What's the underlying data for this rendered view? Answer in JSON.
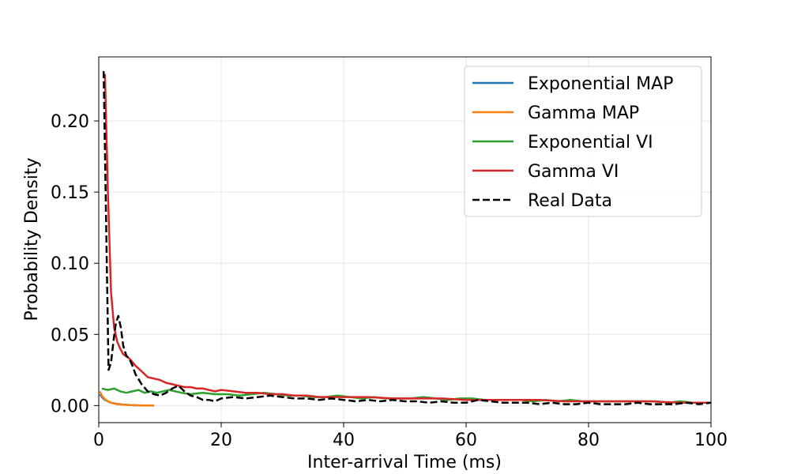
{
  "chart_data": {
    "type": "line",
    "title": "",
    "xlabel": "Inter-arrival Time (ms)",
    "ylabel": "Probability Density",
    "xlim": [
      0,
      100
    ],
    "ylim": [
      -0.012,
      0.245
    ],
    "xticks": [
      0,
      20,
      40,
      60,
      80,
      100
    ],
    "xtick_labels": [
      "0",
      "20",
      "40",
      "60",
      "80",
      "100"
    ],
    "yticks": [
      0.0,
      0.05,
      0.1,
      0.15,
      0.2
    ],
    "ytick_labels": [
      "0.00",
      "0.05",
      "0.10",
      "0.15",
      "0.20"
    ],
    "grid": true,
    "legend_position": "top-right",
    "series": [
      {
        "name": "Exponential MAP",
        "color": "#1f77b4",
        "dash": "solid",
        "x": [
          0.2,
          0.5,
          1.0,
          1.5,
          2.0,
          3.0,
          4.0,
          5.0,
          6.0,
          7.0,
          8.0,
          9.0
        ],
        "y": [
          0.008,
          0.006,
          0.004,
          0.003,
          0.002,
          0.0012,
          0.0007,
          0.0004,
          0.0002,
          0.0001,
          0.0001,
          0.0
        ]
      },
      {
        "name": "Gamma MAP",
        "color": "#ff7f0e",
        "dash": "solid",
        "x": [
          0.2,
          0.5,
          1.0,
          1.5,
          2.0,
          2.5,
          3.0,
          4.0,
          5.0,
          6.0,
          7.0,
          8.0,
          9.0
        ],
        "y": [
          0.01,
          0.007,
          0.0045,
          0.003,
          0.002,
          0.0015,
          0.001,
          0.0006,
          0.0003,
          0.0002,
          0.0001,
          0.0001,
          0.0
        ]
      },
      {
        "name": "Exponential VI",
        "color": "#2ca02c",
        "dash": "solid",
        "x": [
          0.5,
          1.5,
          2.5,
          3.5,
          4.5,
          5.5,
          6.5,
          7.5,
          8.5,
          9.5,
          10.5,
          11.5,
          12.5,
          13.5,
          15,
          17,
          19,
          21,
          23,
          25,
          27,
          29,
          31,
          33,
          35,
          37,
          39,
          41,
          43,
          45,
          47,
          49,
          51,
          53,
          55,
          57,
          59,
          61,
          63,
          65,
          67,
          69,
          71,
          73,
          75,
          77,
          79,
          81,
          83,
          85,
          87,
          89,
          91,
          93,
          95,
          97,
          100
        ],
        "y": [
          0.012,
          0.011,
          0.012,
          0.01,
          0.009,
          0.01,
          0.011,
          0.009,
          0.01,
          0.009,
          0.01,
          0.011,
          0.01,
          0.009,
          0.008,
          0.009,
          0.008,
          0.008,
          0.007,
          0.008,
          0.009,
          0.008,
          0.007,
          0.007,
          0.006,
          0.006,
          0.007,
          0.006,
          0.005,
          0.006,
          0.005,
          0.005,
          0.005,
          0.006,
          0.005,
          0.004,
          0.005,
          0.005,
          0.004,
          0.004,
          0.004,
          0.004,
          0.003,
          0.004,
          0.003,
          0.004,
          0.003,
          0.003,
          0.003,
          0.003,
          0.003,
          0.003,
          0.003,
          0.002,
          0.003,
          0.002,
          0.002
        ]
      },
      {
        "name": "Gamma VI",
        "color": "#d62728",
        "dash": "solid",
        "x": [
          1.0,
          1.5,
          2.0,
          2.5,
          3.0,
          3.5,
          4.0,
          5.0,
          6.0,
          7.0,
          8.0,
          9.0,
          10,
          11,
          12,
          13,
          14,
          15,
          16,
          17,
          18,
          19,
          20,
          22,
          24,
          26,
          28,
          30,
          32,
          34,
          36,
          38,
          40,
          44,
          48,
          52,
          56,
          60,
          64,
          68,
          72,
          76,
          80,
          85,
          90,
          95,
          100
        ],
        "y": [
          0.233,
          0.15,
          0.08,
          0.055,
          0.045,
          0.04,
          0.036,
          0.033,
          0.028,
          0.024,
          0.02,
          0.019,
          0.018,
          0.016,
          0.015,
          0.014,
          0.013,
          0.013,
          0.012,
          0.012,
          0.011,
          0.01,
          0.011,
          0.01,
          0.009,
          0.009,
          0.008,
          0.008,
          0.007,
          0.007,
          0.006,
          0.006,
          0.006,
          0.006,
          0.005,
          0.005,
          0.005,
          0.004,
          0.004,
          0.004,
          0.004,
          0.003,
          0.003,
          0.003,
          0.003,
          0.002,
          0.002
        ]
      },
      {
        "name": "Real Data",
        "color": "#000000",
        "dash": "dashed",
        "x": [
          0.8,
          1.2,
          1.6,
          2.0,
          2.4,
          2.8,
          3.2,
          3.6,
          4.0,
          4.5,
          5.0,
          5.5,
          6.0,
          7.0,
          8.0,
          9.0,
          10,
          11,
          12,
          13,
          14,
          15,
          16,
          17,
          18,
          19,
          20,
          22,
          24,
          26,
          28,
          30,
          32,
          34,
          36,
          38,
          40,
          42,
          44,
          46,
          48,
          50,
          52,
          54,
          56,
          58,
          60,
          62,
          64,
          66,
          68,
          70,
          72,
          74,
          76,
          78,
          80,
          82,
          84,
          86,
          88,
          90,
          92,
          94,
          96,
          98,
          100
        ],
        "y": [
          0.235,
          0.13,
          0.025,
          0.03,
          0.045,
          0.058,
          0.063,
          0.055,
          0.042,
          0.035,
          0.033,
          0.028,
          0.022,
          0.015,
          0.01,
          0.008,
          0.007,
          0.009,
          0.012,
          0.014,
          0.01,
          0.007,
          0.006,
          0.004,
          0.004,
          0.003,
          0.005,
          0.006,
          0.005,
          0.006,
          0.007,
          0.006,
          0.005,
          0.005,
          0.004,
          0.005,
          0.004,
          0.003,
          0.004,
          0.003,
          0.004,
          0.003,
          0.003,
          0.002,
          0.003,
          0.002,
          0.002,
          0.004,
          0.003,
          0.002,
          0.002,
          0.002,
          0.001,
          0.002,
          0.001,
          0.001,
          0.002,
          0.001,
          0.001,
          0.001,
          0.002,
          0.001,
          0.001,
          0.001,
          0.002,
          0.001,
          0.002
        ]
      }
    ]
  }
}
